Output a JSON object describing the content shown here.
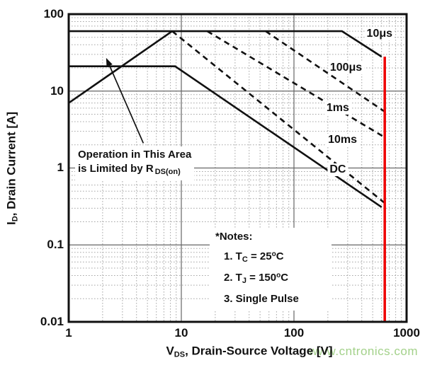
{
  "axes": {
    "x": {
      "label_pre": "V",
      "label_sub": "DS",
      "label_post": ", Drain-Source Voltage [V]",
      "scale": "log",
      "min": 1,
      "max": 1000,
      "ticks": [
        "1",
        "10",
        "100",
        "1000"
      ]
    },
    "y": {
      "label_pre": "I",
      "label_sub": "D",
      "label_post": ", Drain Current [A]",
      "scale": "log",
      "min": 0.01,
      "max": 100,
      "ticks": [
        "100",
        "10",
        "1",
        "0.1",
        "0.01"
      ]
    }
  },
  "chart_data": {
    "type": "line",
    "title": "",
    "xlabel": "VDS, Drain-Source Voltage [V]",
    "ylabel": "ID, Drain Current [A]",
    "xlim": [
      1,
      1000
    ],
    "ylim": [
      0.01,
      100
    ],
    "log_log": true,
    "grid": "log decades solid, minor dotted",
    "legend_position": "labels along curves",
    "series": [
      {
        "name": "10μs",
        "style": "solid",
        "points": [
          [
            1,
            60
          ],
          [
            267,
            60
          ],
          [
            600,
            28
          ]
        ],
        "label_at": [
          575,
          55
        ]
      },
      {
        "name": "100μs",
        "style": "dashed",
        "points": [
          [
            56,
            60
          ],
          [
            640,
            5.4
          ]
        ],
        "label_at": [
          290,
          20
        ]
      },
      {
        "name": "1ms",
        "style": "dashed",
        "points": [
          [
            17,
            60
          ],
          [
            640,
            2.5
          ]
        ],
        "label_at": [
          245,
          6.0
        ]
      },
      {
        "name": "10ms",
        "style": "dashed",
        "points": [
          [
            8.3,
            60
          ],
          [
            640,
            0.35
          ]
        ],
        "label_at": [
          270,
          2.3
        ]
      },
      {
        "name": "DC",
        "style": "solid",
        "points": [
          [
            1,
            21
          ],
          [
            8.8,
            21
          ],
          [
            600,
            0.31
          ]
        ],
        "label_at": [
          245,
          0.95
        ]
      },
      {
        "name": "RDS(on)-limit",
        "style": "solid",
        "points": [
          [
            1,
            7
          ],
          [
            8.3,
            60
          ]
        ],
        "label_at": null
      }
    ],
    "red_limit_line": {
      "x": 640,
      "i_from": 28,
      "i_to": 0.01
    }
  },
  "annotation": {
    "line1": "Operation in This Area",
    "line2_pre": "is Limited by R",
    "line2_sub": "DS(on)",
    "arrow_from": [
      4.6,
      2.1
    ],
    "arrow_to": [
      2.15,
      27
    ]
  },
  "notes": {
    "title": "*Notes:",
    "items": [
      {
        "pre": "1. T",
        "sub": "C",
        "mid": " = 25",
        "sup": "o",
        "post": "C"
      },
      {
        "pre": "2. T",
        "sub": "J",
        "mid": " = 150",
        "sup": "o",
        "post": "C"
      },
      {
        "pre": "3. Single Pulse",
        "sub": "",
        "mid": "",
        "sup": "",
        "post": ""
      }
    ]
  },
  "watermark": "www.cntronics.com",
  "colors": {
    "curve": "#111111",
    "grid_minor": "#a8a8a8",
    "grid_major": "#666666",
    "frame": "#111111",
    "red_line": "#ee0000",
    "watermark_green": "#a3d18a"
  }
}
